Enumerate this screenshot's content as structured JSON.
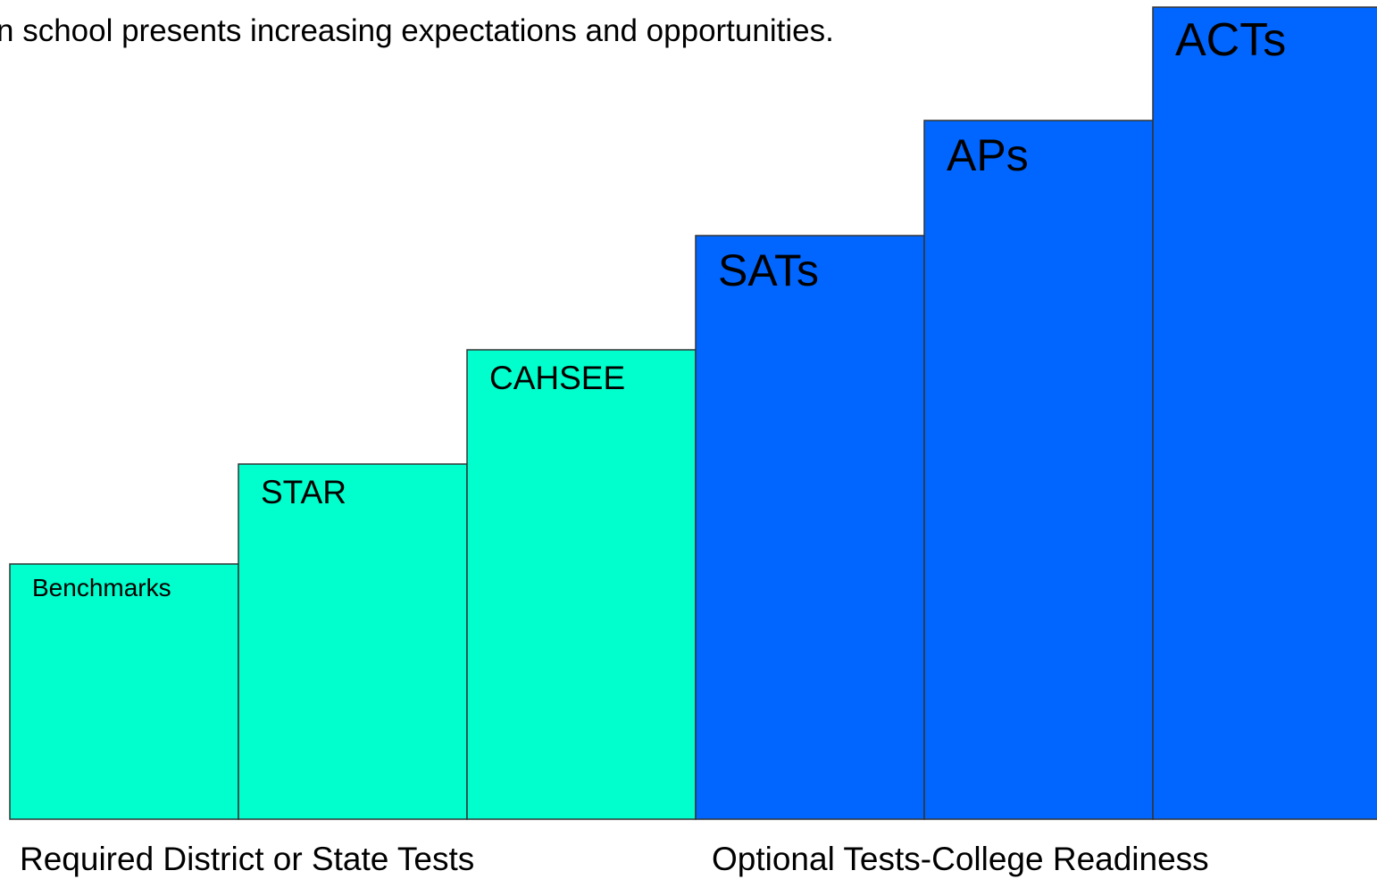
{
  "header": {
    "title": "n school presents increasing expectations and opportunities."
  },
  "steps": [
    {
      "label": "Benchmarks"
    },
    {
      "label": "STAR"
    },
    {
      "label": "CAHSEE"
    },
    {
      "label": "SATs"
    },
    {
      "label": "APs"
    },
    {
      "label": "ACTs"
    }
  ],
  "groups": [
    {
      "label": "Required District or State Tests"
    },
    {
      "label": "Optional Tests-College Readiness"
    }
  ]
}
